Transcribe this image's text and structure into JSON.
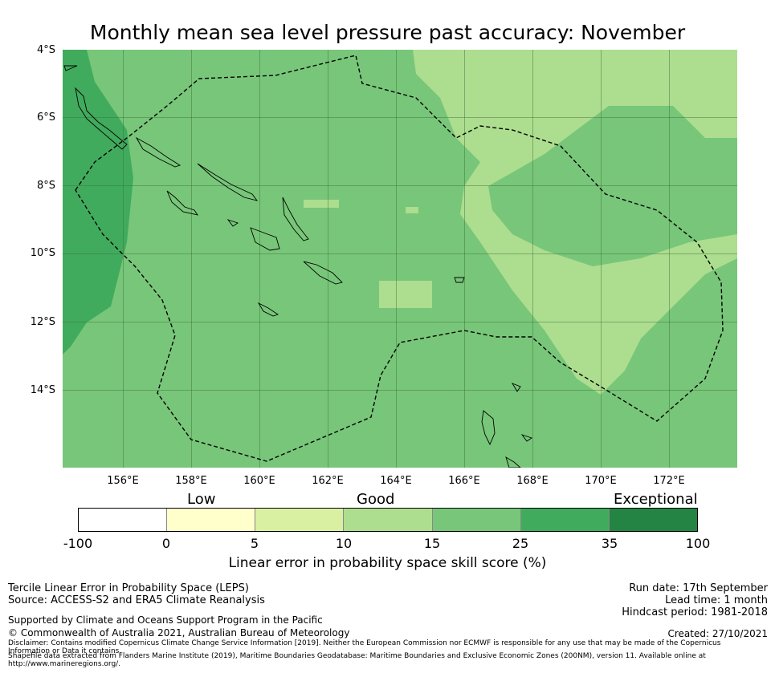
{
  "title": "Monthly mean sea level pressure past accuracy: November",
  "map": {
    "lat_labels": [
      "4°S",
      "6°S",
      "8°S",
      "10°S",
      "12°S",
      "14°S"
    ],
    "lon_labels": [
      "156°E",
      "158°E",
      "160°E",
      "162°E",
      "164°E",
      "166°E",
      "168°E",
      "170°E",
      "172°E"
    ],
    "base_color": "#78c679",
    "region_colors": {
      "lighter": "#addd8e",
      "darker": "#41ab5d"
    }
  },
  "colorbar": {
    "category_labels": {
      "low": "Low",
      "good": "Good",
      "exceptional": "Exceptional"
    },
    "ticks": [
      "-100",
      "0",
      "5",
      "10",
      "15",
      "25",
      "35",
      "100"
    ],
    "colors": [
      "#ffffff",
      "#ffffcc",
      "#d9f0a3",
      "#addd8e",
      "#78c679",
      "#41ab5d",
      "#238443"
    ],
    "title": "Linear error in probability space skill score (%)"
  },
  "footer": {
    "left_line1": "Tercile Linear Error in Probability Space (LEPS)",
    "left_line2": "Source: ACCESS-S2 and ERA5 Climate Reanalysis",
    "support": "Supported by Climate and Oceans Support Program in the Pacific",
    "copyright": "© Commonwealth of Australia 2021, Australian Bureau of Meteorology",
    "disclaimer": "Disclaimer: Contains modified Copernicus Climate Change Service Information [2019]. Neither the European Commission nor ECMWF is responsible for any use that may be made of the Copernicus Information or Data it contains.",
    "shapefile": "Shapefile data extracted from Flanders Marine Institute (2019), Maritime Boundaries Geodatabase: Maritime Boundaries and Exclusive Economic Zones (200NM), version 11. Available online at http://www.marineregions.org/.",
    "run_date": "Run date: 17th September",
    "lead_time": "Lead time: 1 month",
    "hindcast": "Hindcast period: 1981-2018",
    "created": "Created: 27/10/2021"
  }
}
